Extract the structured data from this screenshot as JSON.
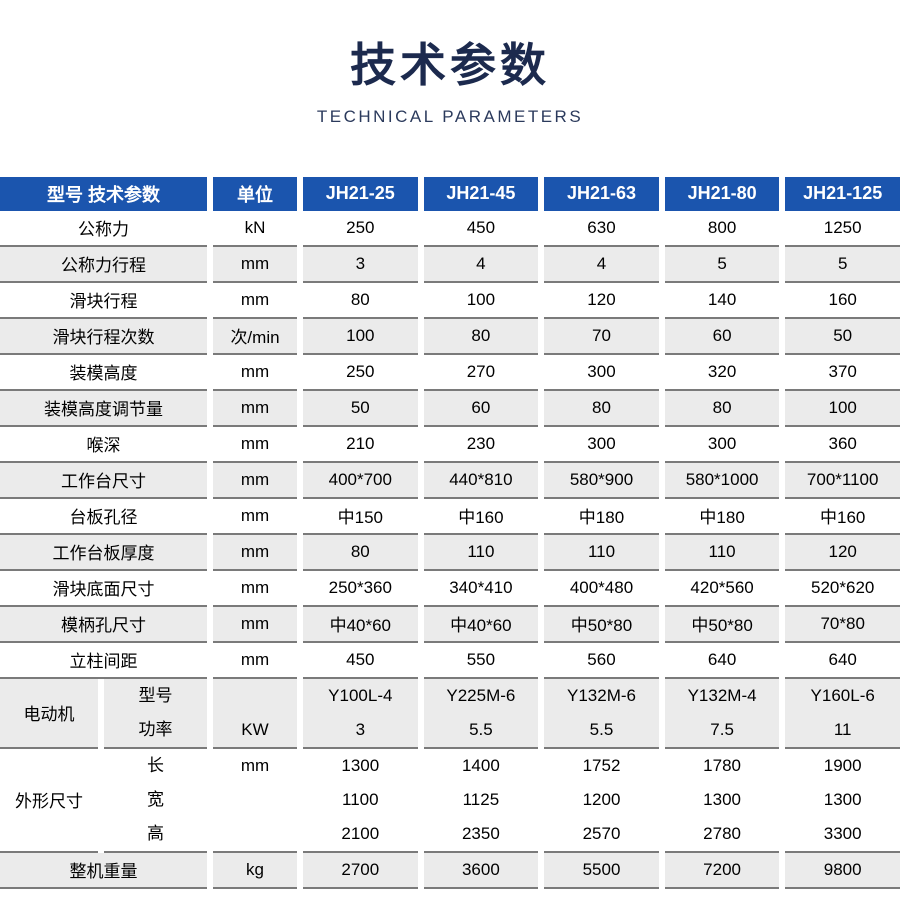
{
  "title": "技术参数",
  "subtitle": "TECHNICAL PARAMETERS",
  "colors": {
    "header_bg": "#1b55ae",
    "alt_row_bg": "#ebebeb",
    "row_border": "#7a7a7a",
    "title_color": "#1c2a4e"
  },
  "table": {
    "header": [
      "型号 技术参数",
      "单位",
      "JH21-25",
      "JH21-45",
      "JH21-63",
      "JH21-80",
      "JH21-125"
    ],
    "rows": [
      {
        "label": "公称力",
        "unit": "kN",
        "values": [
          "250",
          "450",
          "630",
          "800",
          "1250"
        ]
      },
      {
        "label": "公称力行程",
        "unit": "mm",
        "values": [
          "3",
          "4",
          "4",
          "5",
          "5"
        ]
      },
      {
        "label": "滑块行程",
        "unit": "mm",
        "values": [
          "80",
          "100",
          "120",
          "140",
          "160"
        ]
      },
      {
        "label": "滑块行程次数",
        "unit": "次/min",
        "values": [
          "100",
          "80",
          "70",
          "60",
          "50"
        ]
      },
      {
        "label": "装模高度",
        "unit": "mm",
        "values": [
          "250",
          "270",
          "300",
          "320",
          "370"
        ]
      },
      {
        "label": "装模高度调节量",
        "unit": "mm",
        "values": [
          "50",
          "60",
          "80",
          "80",
          "100"
        ]
      },
      {
        "label": "喉深",
        "unit": "mm",
        "values": [
          "210",
          "230",
          "300",
          "300",
          "360"
        ]
      },
      {
        "label": "工作台尺寸",
        "unit": "mm",
        "values": [
          "400*700",
          "440*810",
          "580*900",
          "580*1000",
          "700*1100"
        ]
      },
      {
        "label": "台板孔径",
        "unit": "mm",
        "values": [
          "中150",
          "中160",
          "中180",
          "中180",
          "中160"
        ]
      },
      {
        "label": "工作台板厚度",
        "unit": "mm",
        "values": [
          "80",
          "110",
          "110",
          "110",
          "120"
        ]
      },
      {
        "label": "滑块底面尺寸",
        "unit": "mm",
        "values": [
          "250*360",
          "340*410",
          "400*480",
          "420*560",
          "520*620"
        ]
      },
      {
        "label": "模柄孔尺寸",
        "unit": "mm",
        "values": [
          "中40*60",
          "中40*60",
          "中50*80",
          "中50*80",
          "70*80"
        ]
      },
      {
        "label": "立柱间距",
        "unit": "mm",
        "values": [
          "450",
          "550",
          "560",
          "640",
          "640"
        ]
      }
    ],
    "motor_section": {
      "group_label": "电动机",
      "sub_labels": [
        "型号",
        "功率"
      ],
      "unit_lines": [
        "",
        "KW"
      ],
      "columns": [
        [
          "Y100L-4",
          "3"
        ],
        [
          "Y225M-6",
          "5.5"
        ],
        [
          "Y132M-6",
          "5.5"
        ],
        [
          "Y132M-4",
          "7.5"
        ],
        [
          "Y160L-6",
          "11"
        ]
      ]
    },
    "dimension_section": {
      "group_label": "外形尺寸",
      "sub_labels": [
        "长",
        "宽",
        "高"
      ],
      "unit_lines": [
        "mm",
        "",
        ""
      ],
      "columns": [
        [
          "1300",
          "1100",
          "2100"
        ],
        [
          "1400",
          "1125",
          "2350"
        ],
        [
          "1752",
          "1200",
          "2570"
        ],
        [
          "1780",
          "1300",
          "2780"
        ],
        [
          "1900",
          "1300",
          "3300"
        ]
      ]
    },
    "weight_row": {
      "label": "整机重量",
      "unit": "kg",
      "values": [
        "2700",
        "3600",
        "5500",
        "7200",
        "9800"
      ]
    }
  }
}
